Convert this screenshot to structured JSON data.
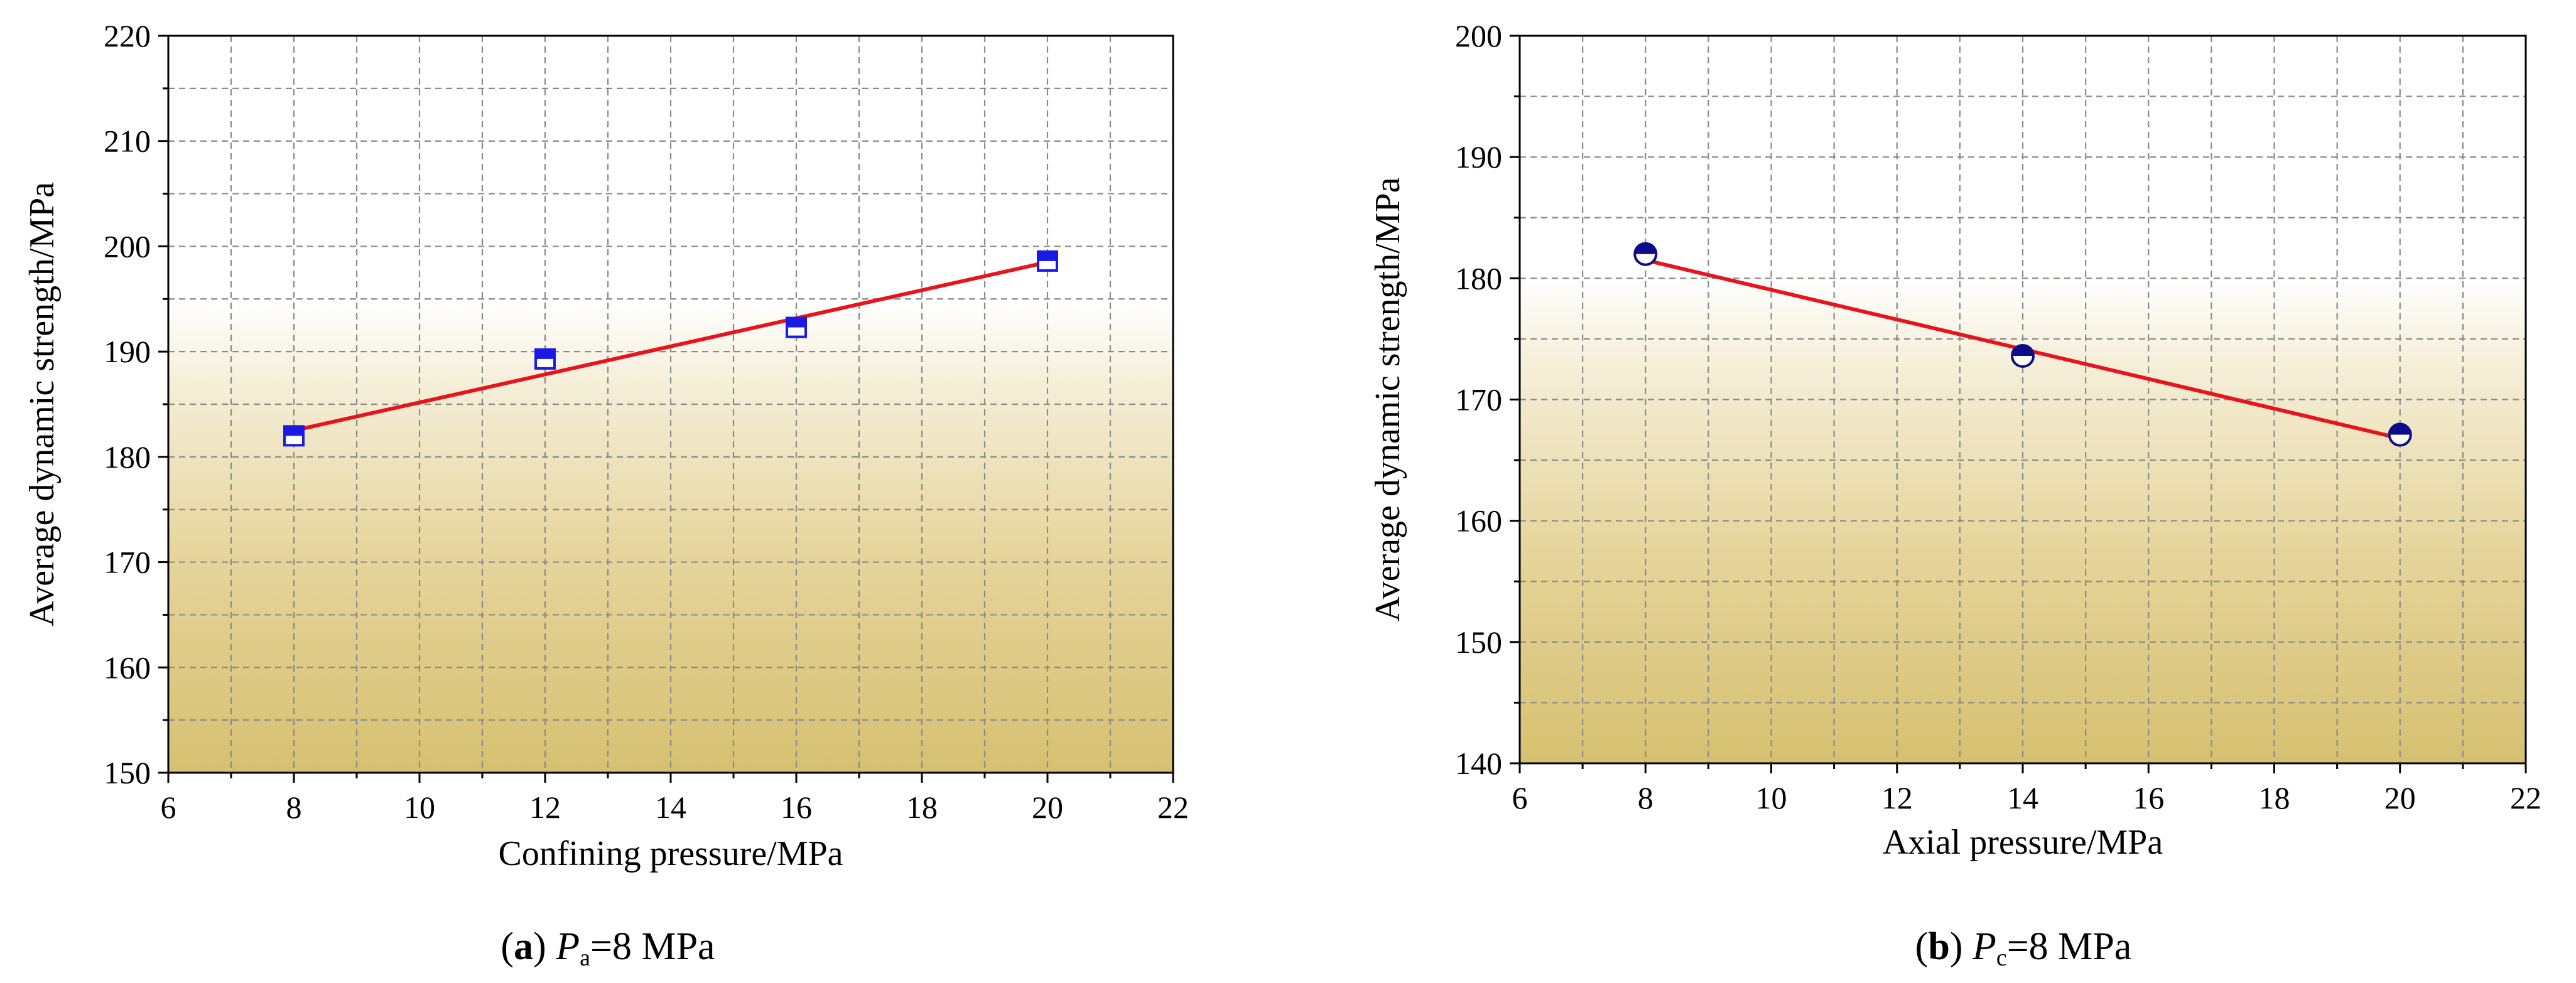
{
  "chart_data": [
    {
      "type": "scatter",
      "xlabel": "Confining pressure/MPa",
      "ylabel": "Average dynamic strength/MPa",
      "xlim": [
        6,
        22
      ],
      "ylim": [
        150,
        220
      ],
      "xticks": [
        6,
        8,
        10,
        12,
        14,
        16,
        18,
        20,
        22
      ],
      "yticks": [
        150,
        160,
        170,
        180,
        190,
        200,
        210,
        220
      ],
      "grid": true,
      "marker": "half-filled-square",
      "series": [
        {
          "x": [
            8,
            12,
            16,
            20
          ],
          "y": [
            182.0,
            189.3,
            192.3,
            198.6
          ]
        }
      ],
      "fit_line": {
        "x": [
          8,
          20
        ],
        "y": [
          182.5,
          198.5
        ]
      },
      "caption": {
        "label": "a",
        "var": "P",
        "sub": "a",
        "rest": "=8 MPa"
      }
    },
    {
      "type": "scatter",
      "xlabel": "Axial pressure/MPa",
      "ylabel": "Average dynamic strength/MPa",
      "xlim": [
        6,
        22
      ],
      "ylim": [
        140,
        200
      ],
      "xticks": [
        6,
        8,
        10,
        12,
        14,
        16,
        18,
        20,
        22
      ],
      "yticks": [
        140,
        150,
        160,
        170,
        180,
        190,
        200
      ],
      "grid": true,
      "marker": "half-filled-circle",
      "series": [
        {
          "x": [
            8,
            14,
            20
          ],
          "y": [
            182.0,
            173.6,
            167.1
          ]
        }
      ],
      "fit_line": {
        "x": [
          8,
          20
        ],
        "y": [
          181.5,
          166.8
        ]
      },
      "caption": {
        "label": "b",
        "var": "P",
        "sub": "c",
        "rest": "=8 MPa"
      }
    }
  ],
  "colors": {
    "marker": "#1a1ae6",
    "marker_b": "#0d0d8c",
    "fit_line": "#e8141c",
    "background_top": "#ffffff",
    "background_bottom": "#d6c070"
  }
}
